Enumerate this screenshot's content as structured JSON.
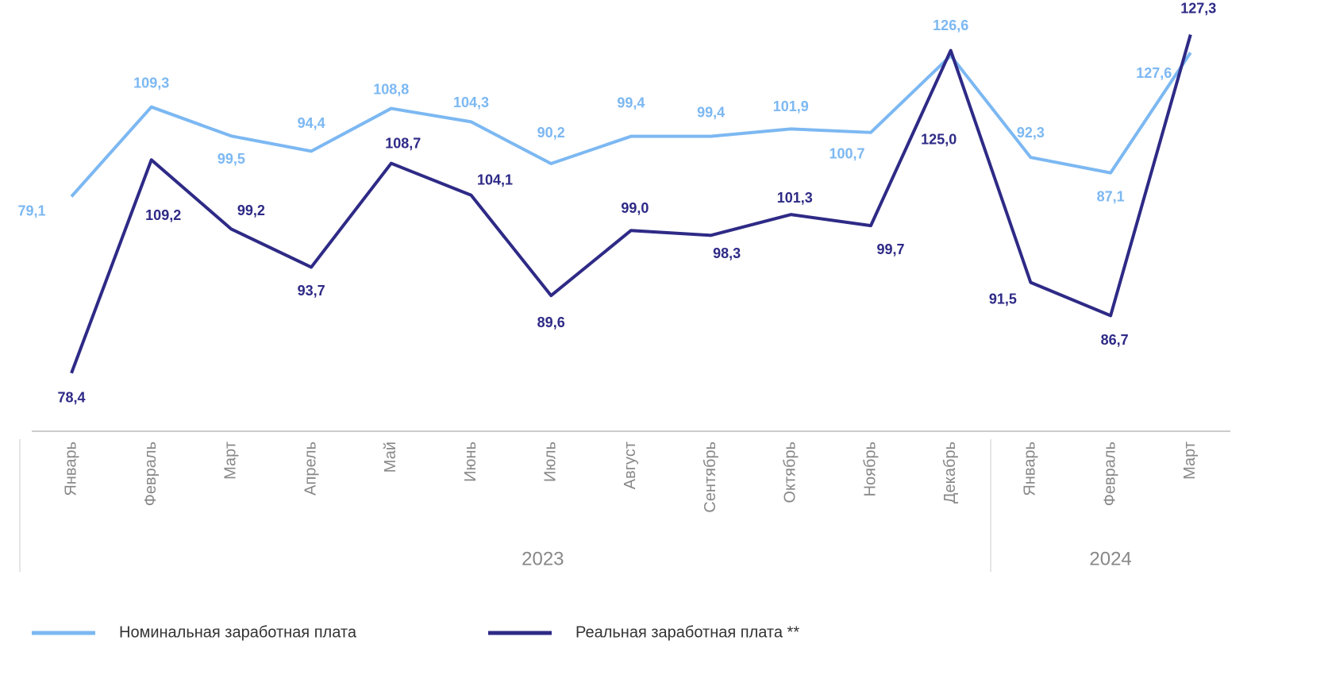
{
  "chart_data": {
    "type": "line",
    "categories": [
      "Январь",
      "Февраль",
      "Март",
      "Апрель",
      "Май",
      "Июнь",
      "Июль",
      "Август",
      "Сентябрь",
      "Октябрь",
      "Ноябрь",
      "Декабрь",
      "Январь",
      "Февраль",
      "Март"
    ],
    "groups": [
      {
        "label": "2023",
        "size": 12
      },
      {
        "label": "2024",
        "size": 3
      }
    ],
    "ylim": [
      70,
      130
    ],
    "y2lim": [
      0,
      140
    ],
    "series": [
      {
        "name": "Номинальная заработная  плата",
        "color": "#7cb8f2",
        "axis": "y2",
        "values": [
          79.1,
          109.3,
          99.5,
          94.4,
          108.8,
          104.3,
          90.2,
          99.4,
          99.4,
          101.9,
          100.7,
          126.6,
          92.3,
          87.1,
          127.6
        ],
        "value_labels": [
          "79,1",
          "109,3",
          "99,5",
          "94,4",
          "108,8",
          "104,3",
          "90,2",
          "99,4",
          "99,4",
          "101,9",
          "100,7",
          "126,6",
          "92,3",
          "87,1",
          "127,6"
        ]
      },
      {
        "name": "Реальная заработная  плата **",
        "color": "#2e2a86",
        "values": [
          78.4,
          109.2,
          99.2,
          93.7,
          108.7,
          104.1,
          89.6,
          99.0,
          98.3,
          101.3,
          99.7,
          125.0,
          91.5,
          86.7,
          127.3
        ],
        "value_labels": [
          "78,4",
          "109,2",
          "99,2",
          "93,7",
          "108,7",
          "104,1",
          "89,6",
          "99,0",
          "98,3",
          "101,3",
          "99,7",
          "125,0",
          "91,5",
          "86,7",
          "127,3"
        ]
      }
    ]
  }
}
